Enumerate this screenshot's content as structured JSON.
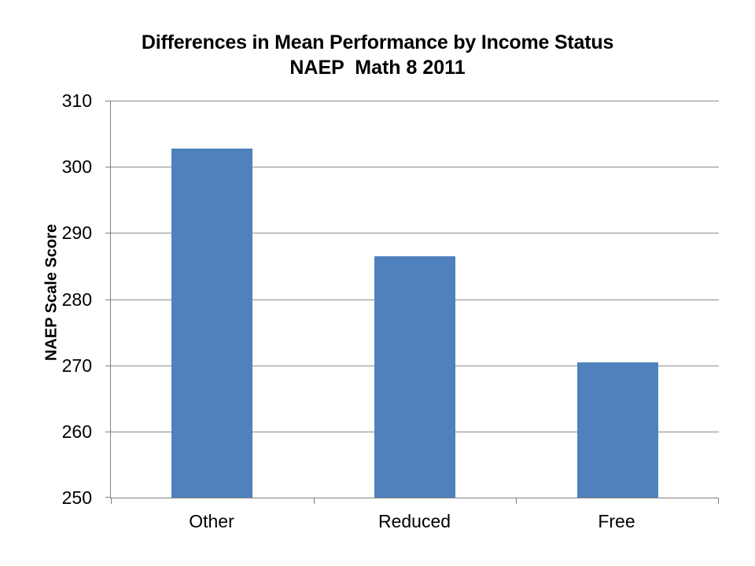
{
  "chart_data": {
    "type": "bar",
    "title": "Differences in Mean Performance by Income Status",
    "subtitle": "NAEP  Math 8 2011",
    "categories": [
      "Other",
      "Reduced",
      "Free"
    ],
    "values": [
      302.8,
      286.5,
      270.4
    ],
    "xlabel": "",
    "ylabel": "NAEP Scale Score",
    "ylim": [
      250,
      310
    ],
    "yticks": [
      250,
      260,
      270,
      280,
      290,
      300,
      310
    ],
    "grid": true,
    "legend": false,
    "colors": {
      "bar": "#4F81BD",
      "axis": "#808080",
      "gridline": "#8A8A8A",
      "text": "#000000",
      "background": "#FFFFFF"
    }
  }
}
